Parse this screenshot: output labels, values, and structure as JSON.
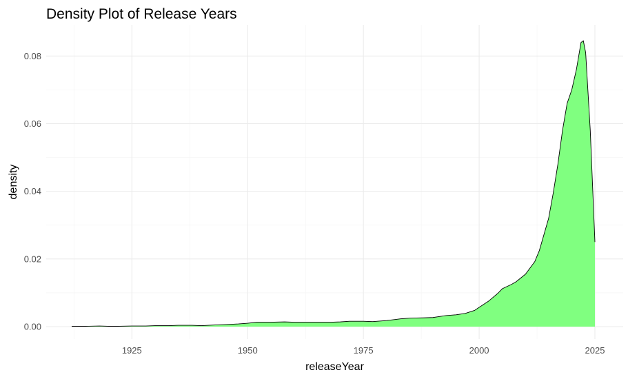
{
  "chart_data": {
    "type": "area",
    "title": "Density Plot of Release Years",
    "xlabel": "releaseYear",
    "ylabel": "density",
    "xlim": [
      1912,
      2025
    ],
    "ylim": [
      0,
      0.088
    ],
    "x_ticks": [
      1925,
      1950,
      1975,
      2000,
      2025
    ],
    "x_tick_labels": [
      "1925",
      "1950",
      "1975",
      "2000",
      "2025"
    ],
    "y_ticks": [
      0.0,
      0.02,
      0.04,
      0.06,
      0.08
    ],
    "y_tick_labels": [
      "0.00",
      "0.02",
      "0.04",
      "0.06",
      "0.08"
    ],
    "grid": true,
    "legend": "none",
    "fill_color": "#80ff80",
    "line_color": "#000000",
    "series": [
      {
        "x": [
          1912,
          1915,
          1918,
          1920,
          1922,
          1925,
          1928,
          1930,
          1933,
          1935,
          1938,
          1940,
          1943,
          1945,
          1948,
          1950,
          1952,
          1955,
          1958,
          1960,
          1963,
          1965,
          1968,
          1970,
          1972,
          1975,
          1977,
          1980,
          1983,
          1985,
          1988,
          1990,
          1993,
          1995,
          1997,
          1999,
          2000,
          2002,
          2004,
          2005,
          2007,
          2008,
          2010,
          2012,
          2013,
          2015,
          2016,
          2017,
          2018,
          2019,
          2020,
          2021,
          2022,
          2022.5,
          2023,
          2024,
          2025
        ],
        "y": [
          0.0001,
          0.0001,
          0.0002,
          0.0001,
          0.0001,
          0.0002,
          0.0002,
          0.0003,
          0.0003,
          0.0004,
          0.0004,
          0.0003,
          0.0005,
          0.0006,
          0.0008,
          0.001,
          0.0013,
          0.0013,
          0.0014,
          0.0013,
          0.0013,
          0.0013,
          0.0013,
          0.0014,
          0.0016,
          0.0016,
          0.0015,
          0.0018,
          0.0023,
          0.0025,
          0.0026,
          0.0027,
          0.0033,
          0.0035,
          0.0039,
          0.0048,
          0.0057,
          0.0075,
          0.0098,
          0.0112,
          0.0125,
          0.0133,
          0.0155,
          0.0192,
          0.0225,
          0.032,
          0.0395,
          0.048,
          0.058,
          0.066,
          0.07,
          0.076,
          0.084,
          0.0845,
          0.081,
          0.058,
          0.025
        ]
      }
    ]
  }
}
